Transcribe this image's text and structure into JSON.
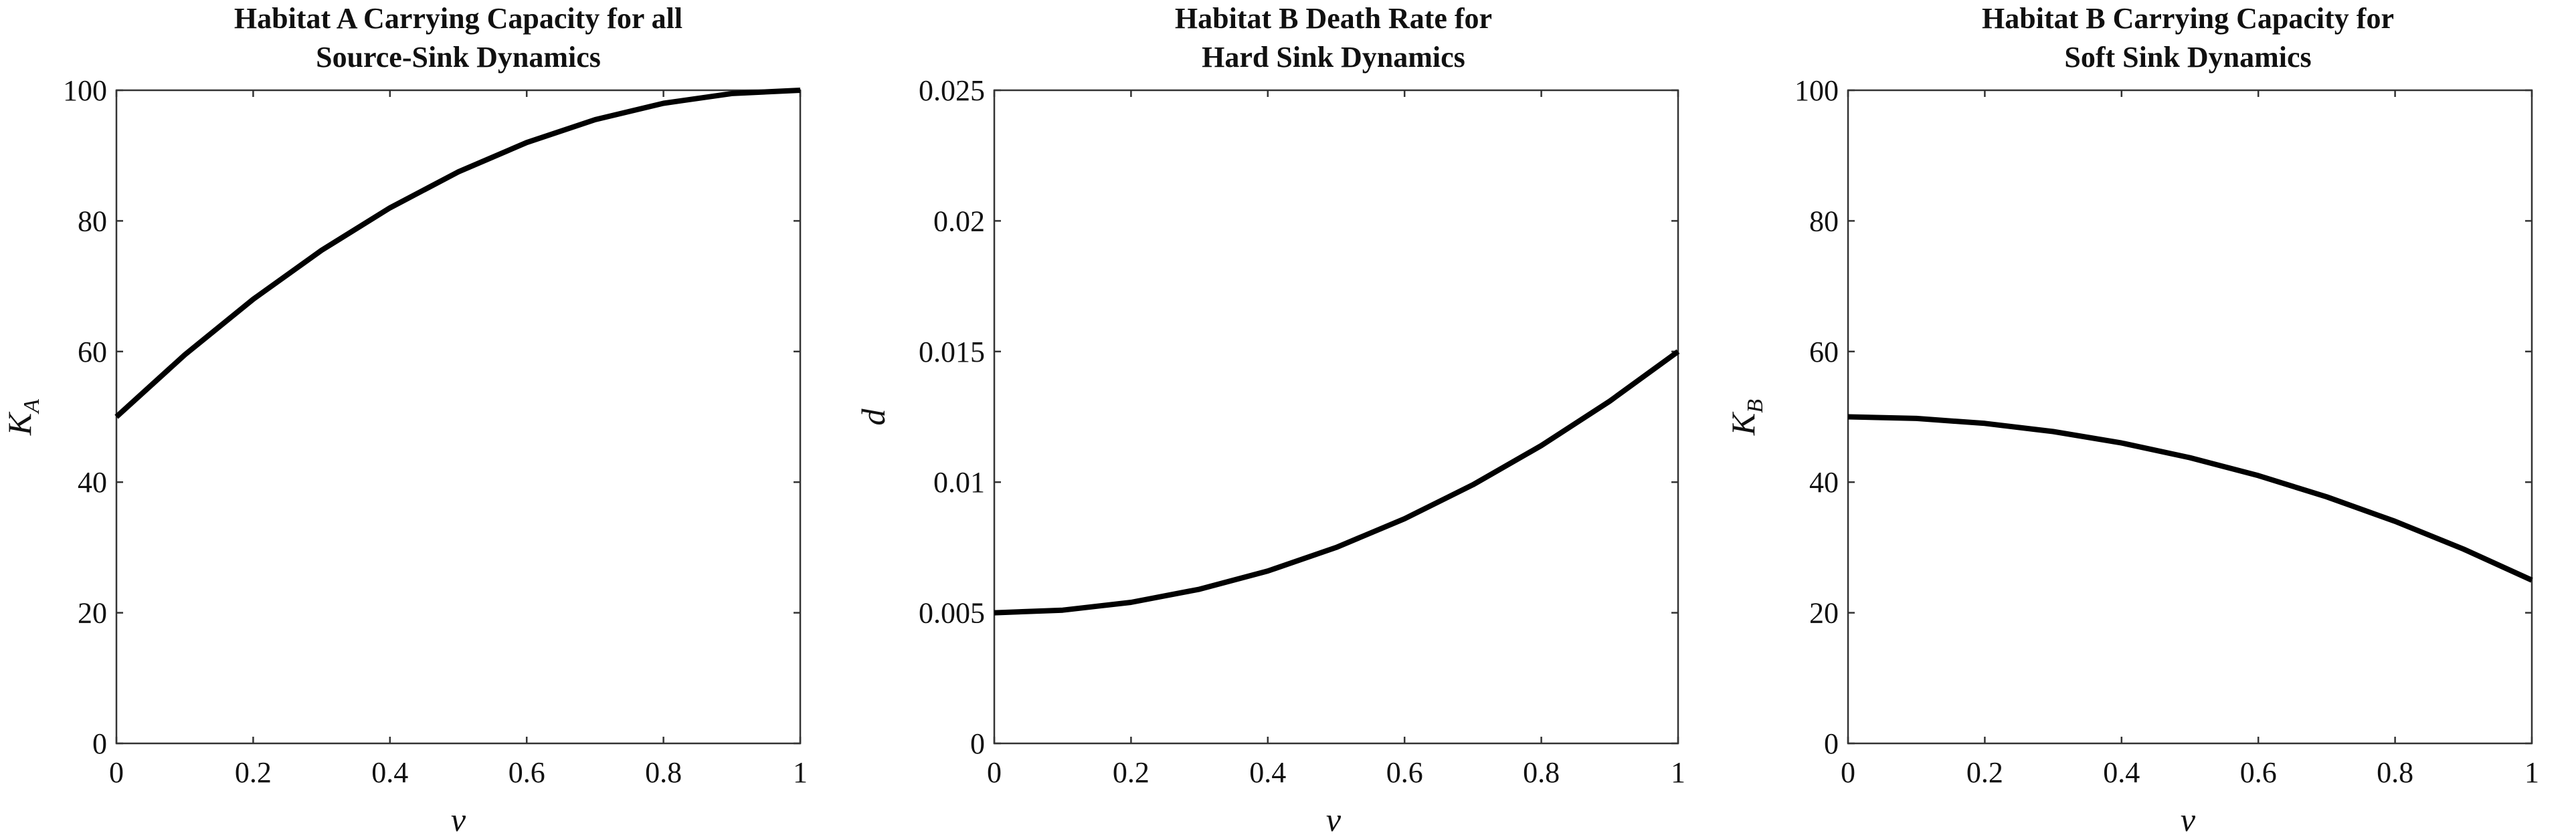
{
  "chart_data": [
    {
      "type": "line",
      "title_lines": [
        "Habitat A Carrying Capacity for all",
        "Source-Sink Dynamics"
      ],
      "xlabel": "v",
      "ylabel": "K",
      "ylabel_sub": "A",
      "xlim": [
        0,
        1
      ],
      "ylim": [
        0,
        100
      ],
      "xticks": [
        0,
        0.2,
        0.4,
        0.6,
        0.8,
        1
      ],
      "xtick_labels": [
        "0",
        "0.2",
        "0.4",
        "0.6",
        "0.8",
        "1"
      ],
      "yticks": [
        0,
        20,
        40,
        60,
        80,
        100
      ],
      "ytick_labels": [
        "0",
        "20",
        "40",
        "60",
        "80",
        "100"
      ],
      "grid": false,
      "series": [
        {
          "x": [
            0,
            0.1,
            0.2,
            0.3,
            0.4,
            0.5,
            0.6,
            0.7,
            0.8,
            0.9,
            1.0
          ],
          "y": [
            50,
            59.5,
            68.0,
            75.5,
            82.0,
            87.5,
            92.0,
            95.5,
            98.0,
            99.5,
            100
          ]
        }
      ]
    },
    {
      "type": "line",
      "title_lines": [
        "Habitat B Death Rate for",
        "Hard Sink Dynamics"
      ],
      "xlabel": "v",
      "ylabel": "d",
      "ylabel_sub": "",
      "xlim": [
        0,
        1
      ],
      "ylim": [
        0,
        0.025
      ],
      "xticks": [
        0,
        0.2,
        0.4,
        0.6,
        0.8,
        1
      ],
      "xtick_labels": [
        "0",
        "0.2",
        "0.4",
        "0.6",
        "0.8",
        "1"
      ],
      "yticks": [
        0,
        0.005,
        0.01,
        0.015,
        0.02,
        0.025
      ],
      "ytick_labels": [
        "0",
        "0.005",
        "0.01",
        "0.015",
        "0.02",
        "0.025"
      ],
      "grid": false,
      "series": [
        {
          "x": [
            0,
            0.1,
            0.2,
            0.3,
            0.4,
            0.5,
            0.6,
            0.7,
            0.8,
            0.9,
            1.0
          ],
          "y": [
            0.005,
            0.0051,
            0.0054,
            0.0059,
            0.0066,
            0.0075,
            0.0086,
            0.0099,
            0.0114,
            0.0131,
            0.015
          ]
        }
      ]
    },
    {
      "type": "line",
      "title_lines": [
        "Habitat B Carrying Capacity for",
        "Soft Sink Dynamics"
      ],
      "xlabel": "v",
      "ylabel": "K",
      "ylabel_sub": "B",
      "xlim": [
        0,
        1
      ],
      "ylim": [
        0,
        100
      ],
      "xticks": [
        0,
        0.2,
        0.4,
        0.6,
        0.8,
        1
      ],
      "xtick_labels": [
        "0",
        "0.2",
        "0.4",
        "0.6",
        "0.8",
        "1"
      ],
      "yticks": [
        0,
        20,
        40,
        60,
        80,
        100
      ],
      "ytick_labels": [
        "0",
        "20",
        "40",
        "60",
        "80",
        "100"
      ],
      "grid": false,
      "series": [
        {
          "x": [
            0,
            0.1,
            0.2,
            0.3,
            0.4,
            0.5,
            0.6,
            0.7,
            0.8,
            0.9,
            1.0
          ],
          "y": [
            50,
            49.75,
            49.0,
            47.75,
            46.0,
            43.75,
            41.0,
            37.75,
            34.0,
            29.75,
            25
          ]
        }
      ]
    }
  ]
}
